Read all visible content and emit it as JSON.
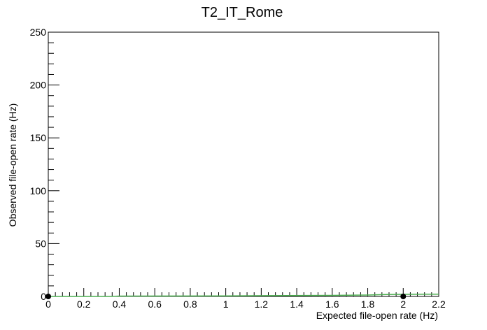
{
  "chart_data": {
    "type": "scatter",
    "title": "T2_IT_Rome",
    "xlabel": "Expected file-open rate (Hz)",
    "ylabel": "Observed file-open rate (Hz)",
    "xlim": [
      0,
      2.2
    ],
    "ylim": [
      0,
      250
    ],
    "x_tick_labels": [
      "0",
      "0.2",
      "0.4",
      "0.6",
      "0.8",
      "1",
      "1.2",
      "1.4",
      "1.6",
      "1.8",
      "2",
      "2.2"
    ],
    "y_tick_labels": [
      "0",
      "50",
      "100",
      "150",
      "200",
      "250"
    ],
    "grid": false,
    "legend": "none",
    "series": [
      {
        "kind": "points",
        "color": "#000000",
        "x": [
          0,
          2
        ],
        "y": [
          0,
          0
        ]
      },
      {
        "kind": "line",
        "color": "#4caf50",
        "x": [
          0,
          0.35,
          0.4,
          1.0,
          1.6,
          1.8,
          1.9,
          2.0,
          2.2
        ],
        "y": [
          0,
          0,
          0.3,
          0.5,
          1.0,
          1.3,
          1.8,
          2.0,
          2.2
        ]
      }
    ]
  }
}
